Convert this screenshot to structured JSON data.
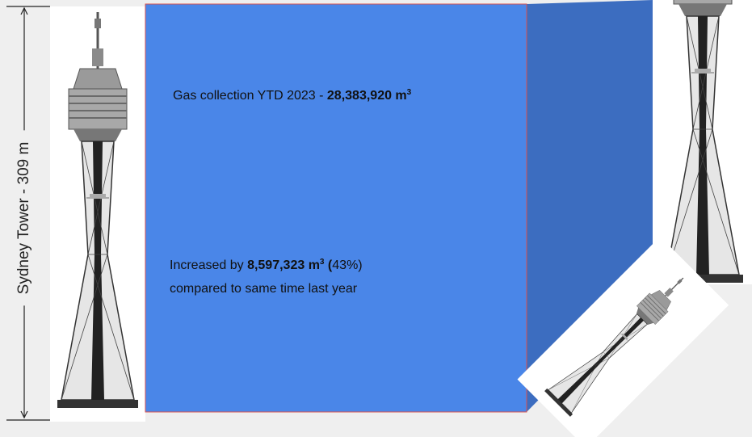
{
  "dimension_label": "Sydney Tower - 309 m",
  "headline": {
    "text": "Gas collection YTD 2023 - ",
    "amount": "28,383,920 m",
    "unit_power": "3"
  },
  "change": {
    "prefix": "Increased by ",
    "amount": "8,597,323 m",
    "unit_power": "3",
    "open": " (",
    "percent": "43%)",
    "suffix": "compared to same time last year"
  }
}
